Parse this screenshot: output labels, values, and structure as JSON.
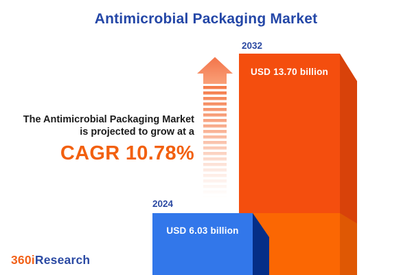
{
  "title": "Antimicrobial Packaging Market",
  "description": {
    "line1": "The Antimicrobial Packaging Market",
    "line2": "is projected to grow at a",
    "cagr": "CAGR 10.78%"
  },
  "chart_data": {
    "type": "bar",
    "title": "Antimicrobial Packaging Market",
    "categories": [
      "2024",
      "2032"
    ],
    "values": [
      6.03,
      13.7
    ],
    "unit": "USD billion",
    "data_labels": [
      "USD 6.03 billion",
      "USD 13.70 billion"
    ],
    "cagr_percent": 10.78,
    "legend": "none",
    "axes": "none",
    "colors": {
      "bar_2024_face": "#3277EA",
      "bar_2024_side": "#052E87",
      "bar_2032_face_upper": "#F44E0E",
      "bar_2032_face_lower": "#FB6703",
      "bar_2032_side_upper": "#D8420A",
      "bar_2032_side_lower": "#DF5804",
      "accent_orange": "#F2600F",
      "accent_blue": "#2447A7"
    }
  },
  "bars": [
    {
      "year": "2024",
      "label": "USD 6.03 billion"
    },
    {
      "year": "2032",
      "label": "USD 13.70 billion"
    }
  ],
  "icons": {
    "growth_arrow": "striped-up-arrow"
  },
  "logo": {
    "part1": "360i",
    "part2": "Research"
  }
}
